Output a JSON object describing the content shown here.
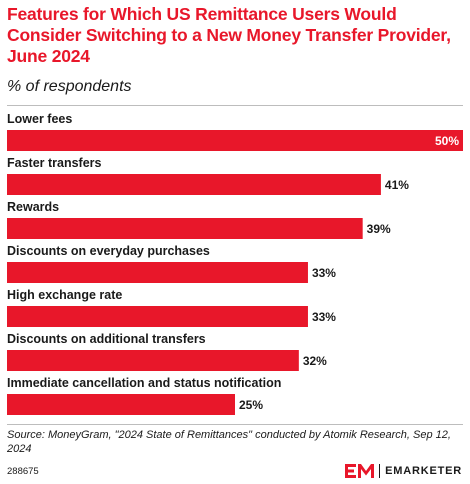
{
  "header": {
    "title": "Features for Which US Remittance Users Would Consider Switching to a New Money Transfer Provider, June 2024",
    "subtitle": "% of respondents"
  },
  "chart_data": {
    "type": "bar",
    "orientation": "horizontal",
    "categories": [
      "Lower fees",
      "Faster transfers",
      "Rewards",
      "Discounts on everyday purchases",
      "High exchange rate",
      "Discounts on additional transfers",
      "Immediate cancellation and status notification"
    ],
    "values": [
      50,
      41,
      39,
      33,
      33,
      32,
      25
    ],
    "value_labels": [
      "50%",
      "41%",
      "39%",
      "33%",
      "33%",
      "32%",
      "25%"
    ],
    "xlim": [
      0,
      50
    ],
    "bar_color": "#e8172a",
    "grid": false
  },
  "footer": {
    "source": "Source: MoneyGram, \"2024 State of Remittances\" conducted by Atomik Research, Sep 12, 2024",
    "chart_id": "288675",
    "brand": "EMARKETER"
  }
}
